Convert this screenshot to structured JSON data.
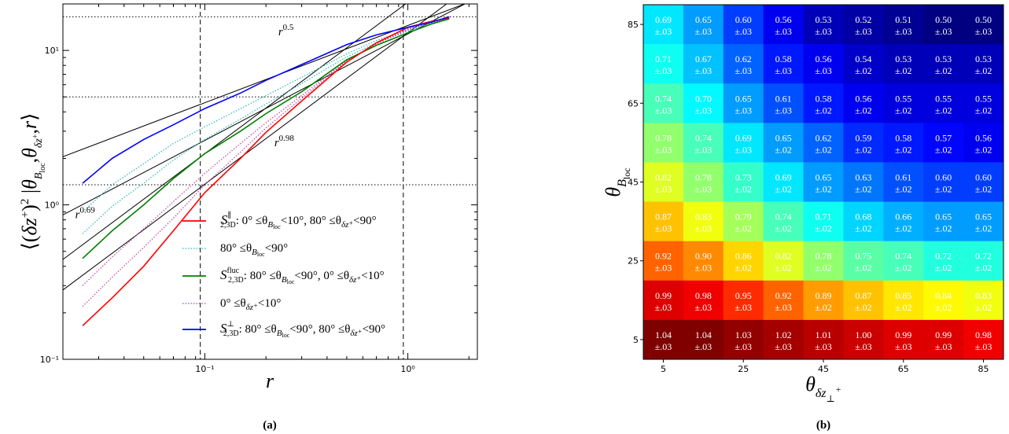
{
  "chart_data": [
    {
      "type": "line",
      "panel_label": "(a)",
      "xlabel": "r",
      "ylabel": "⟨(δz⁺)² |θ_Bloc, θ_δz⁺, r⟩",
      "xscale": "log",
      "yscale": "log",
      "xlim": [
        0.02,
        2.2
      ],
      "ylim": [
        0.1,
        20
      ],
      "x_tick_labels": [
        "10⁻¹",
        "10⁰"
      ],
      "y_tick_labels": [
        "10⁻¹",
        "10⁰",
        "10¹"
      ],
      "x": [
        0.025,
        0.035,
        0.05,
        0.07,
        0.1,
        0.15,
        0.2,
        0.3,
        0.5,
        0.7,
        1.0,
        1.3,
        1.6
      ],
      "series": [
        {
          "name": "S∥2,3D: 0° ≤θ_Bloc<10°, 80° ≤θ_δz⁺<90°",
          "style": "solid",
          "color": "#ff0000",
          "values": [
            0.165,
            0.25,
            0.4,
            0.68,
            1.2,
            2.0,
            2.95,
            4.7,
            8.4,
            11.2,
            14.1,
            15.4,
            16.2
          ]
        },
        {
          "name": "S_fluc 2,3D: 80° ≤θ_Bloc<90°, 0° ≤θ_δz⁺<10°",
          "style": "solid",
          "color": "#008000",
          "values": [
            0.45,
            0.68,
            1.0,
            1.48,
            2.15,
            3.0,
            3.9,
            5.4,
            8.7,
            10.8,
            13.0,
            14.8,
            16.0
          ]
        },
        {
          "name": "S⊥2,3D: 80° ≤θ_Bloc<90°, 80° ≤θ_δz⁺<90°",
          "style": "solid",
          "color": "#0000ff",
          "values": [
            1.38,
            2.0,
            2.65,
            3.3,
            4.2,
            5.3,
            6.4,
            8.1,
            10.9,
            12.6,
            14.1,
            15.2,
            16.5
          ]
        },
        {
          "name": "80° ≤θ_Bloc<90°",
          "style": "dotted",
          "color": "#29b6b6",
          "values": [
            0.9,
            1.35,
            1.85,
            2.5,
            3.2,
            4.2,
            5.1,
            6.7,
            9.5,
            11.6,
            13.6,
            15.0,
            16.2
          ]
        },
        {
          "name": "80° ≤θ_Bloc<90°",
          "style": "dotted",
          "color": "#29b6b6",
          "values": [
            0.65,
            0.98,
            1.38,
            1.95,
            2.65,
            3.6,
            4.5,
            6.1,
            9.1,
            11.2,
            13.3,
            14.9,
            16.1
          ]
        },
        {
          "name": "0° ≤θ_δz⁺<10°",
          "style": "dotted",
          "color": "#c040a0",
          "values": [
            0.3,
            0.46,
            0.7,
            1.05,
            1.6,
            2.5,
            3.4,
            5.1,
            8.6,
            11.0,
            13.6,
            15.1,
            16.1
          ]
        },
        {
          "name": "0° ≤θ_δz⁺<10°",
          "style": "dotted",
          "color": "#c040a0",
          "values": [
            0.22,
            0.34,
            0.53,
            0.82,
            1.35,
            2.2,
            3.15,
            4.9,
            8.5,
            11.1,
            13.8,
            15.2,
            16.1
          ]
        }
      ],
      "guides": {
        "reference_fits": [
          {
            "exponent": 0.5,
            "label": "r^0.5",
            "amplitude": 14.5
          },
          {
            "exponent": 0.69,
            "label": "r^0.69",
            "amplitude": 12.8
          },
          {
            "exponent": 0.98,
            "label": "r^0.98",
            "amplitude": 13.0
          },
          {
            "exponent": 0.98,
            "label": "",
            "amplitude": 20.5
          }
        ],
        "vertical_dashed_x": [
          0.095,
          0.95
        ],
        "horizontal_dotted_y": [
          1.35,
          5.0,
          16.5
        ]
      },
      "annotations": [
        {
          "text": "r",
          "exponent": "0.5"
        },
        {
          "text": "r",
          "exponent": "0.98"
        },
        {
          "text": "r",
          "exponent": "0.69"
        }
      ],
      "legend": {
        "placement": "lower-right",
        "entries": [
          {
            "main": "S",
            "sup": "∥",
            "sub": "2,3D",
            "rest": ": 0° ≤θ",
            "sub2": "B",
            "subsub2": "loc",
            "rest2": "<10°, 80° ≤θ",
            "sub3": "δz⁺",
            "rest3": "<90°",
            "color": "#ff0000",
            "style": "solid"
          },
          {
            "main": "",
            "sup": "",
            "sub": "",
            "rest": "80° ≤θ",
            "sub2": "B",
            "subsub2": "loc",
            "rest2": "<90°",
            "sub3": "",
            "rest3": "",
            "color": "#29b6b6",
            "style": "dotted"
          },
          {
            "main": "S",
            "sup": "fluc",
            "sub": "2,3D",
            "rest": ": 80° ≤θ",
            "sub2": "B",
            "subsub2": "loc",
            "rest2": "<90°, 0° ≤θ",
            "sub3": "δz⁺",
            "rest3": "<10°",
            "color": "#008000",
            "style": "solid"
          },
          {
            "main": "",
            "sup": "",
            "sub": "",
            "rest": "0° ≤θ",
            "sub2": "δz⁺",
            "subsub2": "",
            "rest2": "<10°",
            "sub3": "",
            "rest3": "",
            "color": "#c040a0",
            "style": "dotted"
          },
          {
            "main": "S",
            "sup": "⊥",
            "sub": "2,3D",
            "rest": ": 80° ≤θ",
            "sub2": "B",
            "subsub2": "loc",
            "rest2": "<90°, 80° ≤θ",
            "sub3": "δz⁺",
            "rest3": "<90°",
            "color": "#0000ff",
            "style": "solid"
          }
        ]
      }
    },
    {
      "type": "heatmap",
      "panel_label": "(b)",
      "xlabel": "θ_δz⊥⁺",
      "ylabel": "θ_Bloc",
      "colormap": "jet",
      "color_range": [
        0.5,
        1.04
      ],
      "x_tick_labels": [
        "5",
        "25",
        "45",
        "65",
        "85"
      ],
      "y_tick_labels": [
        "5",
        "25",
        "45",
        "65",
        "85"
      ],
      "columns": [
        "5",
        "15",
        "25",
        "35",
        "45",
        "55",
        "65",
        "75",
        "85"
      ],
      "rows": [
        "85",
        "75",
        "65",
        "55",
        "45",
        "35",
        "25",
        "15",
        "5"
      ],
      "values": [
        [
          "0.69",
          "0.65",
          "0.60",
          "0.56",
          "0.53",
          "0.52",
          "0.51",
          "0.50",
          "0.50"
        ],
        [
          "0.71",
          "0.67",
          "0.62",
          "0.58",
          "0.56",
          "0.54",
          "0.53",
          "0.53",
          "0.53"
        ],
        [
          "0.74",
          "0.70",
          "0.65",
          "0.61",
          "0.58",
          "0.56",
          "0.55",
          "0.55",
          "0.55"
        ],
        [
          "0.78",
          "0.74",
          "0.69",
          "0.65",
          "0.62",
          "0.59",
          "0.58",
          "0.57",
          "0.56"
        ],
        [
          "0.82",
          "0.78",
          "0.73",
          "0.69",
          "0.65",
          "0.63",
          "0.61",
          "0.60",
          "0.60"
        ],
        [
          "0.87",
          "0.83",
          "0.79",
          "0.74",
          "0.71",
          "0.68",
          "0.66",
          "0.65",
          "0.65"
        ],
        [
          "0.92",
          "0.90",
          "0.86",
          "0.82",
          "0.78",
          "0.75",
          "0.74",
          "0.72",
          "0.72"
        ],
        [
          "0.99",
          "0.98",
          "0.95",
          "0.92",
          "0.89",
          "0.87",
          "0.85",
          "0.84",
          "0.83"
        ],
        [
          "1.04",
          "1.04",
          "1.03",
          "1.02",
          "1.01",
          "1.00",
          "0.99",
          "0.99",
          "0.98"
        ]
      ],
      "errors": [
        [
          "±.03",
          "±.03",
          "±.03",
          "±.03",
          "±.03",
          "±.03",
          "±.03",
          "±.03",
          "±.03"
        ],
        [
          "±.03",
          "±.03",
          "±.03",
          "±.03",
          "±.03",
          "±.02",
          "±.02",
          "±.02",
          "±.02"
        ],
        [
          "±.03",
          "±.03",
          "±.03",
          "±.03",
          "±.02",
          "±.02",
          "±.02",
          "±.02",
          "±.02"
        ],
        [
          "±.03",
          "±.03",
          "±.03",
          "±.02",
          "±.02",
          "±.02",
          "±.02",
          "±.02",
          "±.02"
        ],
        [
          "±.03",
          "±.03",
          "±.02",
          "±.02",
          "±.02",
          "±.02",
          "±.02",
          "±.02",
          "±.02"
        ],
        [
          "±.03",
          "±.03",
          "±.02",
          "±.02",
          "±.02",
          "±.02",
          "±.02",
          "±.02",
          "±.02"
        ],
        [
          "±.03",
          "±.03",
          "±.02",
          "±.02",
          "±.02",
          "±.02",
          "±.02",
          "±.02",
          "±.02"
        ],
        [
          "±.03",
          "±.03",
          "±.03",
          "±.03",
          "±.02",
          "±.02",
          "±.02",
          "±.02",
          "±.02"
        ],
        [
          "±.03",
          "±.03",
          "±.03",
          "±.03",
          "±.03",
          "±.03",
          "±.03",
          "±.03",
          "±.03"
        ]
      ]
    }
  ]
}
